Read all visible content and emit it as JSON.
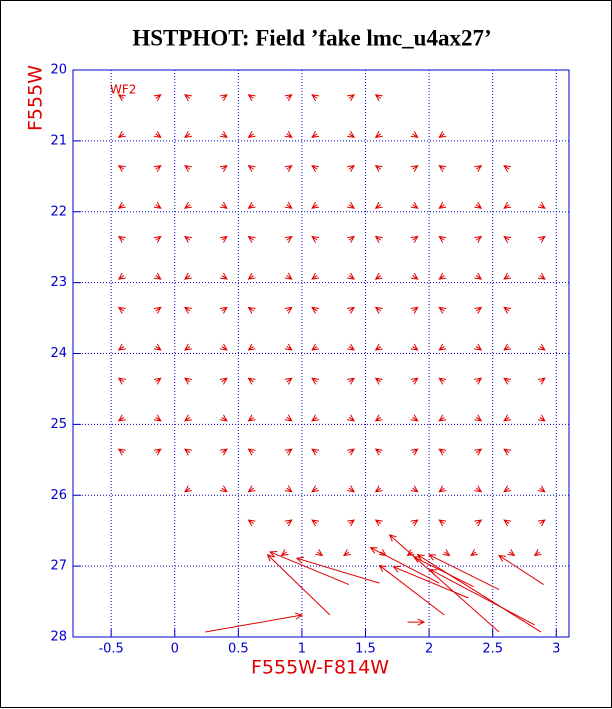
{
  "chart_data": {
    "type": "quiver",
    "title": "HSTPHOT: Field ’fake lmc_u4ax27’",
    "annotation": "WF2",
    "xlabel": "F555W-F814W",
    "ylabel": "F555W",
    "xlim": [
      -0.8,
      3.1
    ],
    "ylim": [
      28,
      20
    ],
    "xticks": [
      -0.5,
      0,
      0.5,
      1,
      1.5,
      2,
      2.5,
      3
    ],
    "yticks": [
      20,
      21,
      22,
      23,
      24,
      25,
      26,
      27,
      28
    ],
    "grid": true,
    "color": "#e00000",
    "x": [
      -0.4,
      -0.15,
      0.12,
      0.37,
      0.62,
      0.88,
      1.12,
      1.37,
      1.62,
      -0.4,
      -0.15,
      0.12,
      0.37,
      0.62,
      0.88,
      1.12,
      1.37,
      1.62,
      1.87,
      2.12,
      -0.4,
      -0.15,
      0.12,
      0.37,
      0.62,
      0.88,
      1.12,
      1.37,
      1.62,
      1.87,
      2.12,
      2.37,
      2.63,
      -0.4,
      -0.15,
      0.12,
      0.37,
      0.62,
      0.88,
      1.12,
      1.37,
      1.62,
      1.87,
      2.12,
      2.37,
      2.63,
      2.87,
      -0.4,
      -0.15,
      0.12,
      0.37,
      0.62,
      0.88,
      1.12,
      1.37,
      1.62,
      1.87,
      2.12,
      2.37,
      2.63,
      2.87,
      -0.4,
      -0.15,
      0.12,
      0.37,
      0.62,
      0.88,
      1.12,
      1.37,
      1.62,
      1.87,
      2.12,
      2.37,
      2.63,
      2.87,
      -0.4,
      -0.15,
      0.12,
      0.37,
      0.62,
      0.88,
      1.12,
      1.37,
      1.62,
      1.87,
      2.12,
      2.37,
      2.63,
      -0.4,
      -0.15,
      0.12,
      0.37,
      0.62,
      0.88,
      1.12,
      1.37,
      1.62,
      1.87,
      2.12,
      2.37,
      2.63,
      2.87,
      -0.4,
      -0.15,
      0.12,
      0.37,
      0.62,
      0.88,
      1.12,
      1.37,
      1.62,
      1.87,
      2.12,
      2.37,
      2.63,
      2.87,
      -0.4,
      -0.15,
      0.12,
      0.37,
      0.62,
      0.88,
      1.12,
      1.37,
      1.62,
      1.87,
      2.12,
      2.37,
      2.63,
      2.87,
      -0.4,
      -0.15,
      0.12,
      0.37,
      0.62,
      0.88,
      1.12,
      1.37,
      1.62,
      1.87,
      2.12,
      2.37,
      2.63,
      0.12,
      0.37,
      0.62,
      0.88,
      1.12,
      1.37,
      1.62,
      1.87,
      2.12,
      2.37,
      2.63,
      2.87,
      0.62,
      0.88,
      1.12,
      1.37,
      1.62,
      1.87,
      2.12,
      2.37,
      2.63,
      2.87,
      0.88,
      1.12,
      1.37,
      1.62,
      1.87,
      2.12,
      2.37,
      2.63,
      2.87,
      1.37,
      1.22,
      1.61,
      0.24,
      1.83,
      2.55,
      2.88,
      2.35,
      2.55,
      2.9,
      2.08,
      2.31,
      2.12,
      2.83
    ],
    "y": [
      20.4,
      20.4,
      20.4,
      20.4,
      20.4,
      20.4,
      20.4,
      20.4,
      20.4,
      20.9,
      20.9,
      20.9,
      20.9,
      20.9,
      20.9,
      20.9,
      20.9,
      20.9,
      20.9,
      20.9,
      21.4,
      21.4,
      21.4,
      21.4,
      21.4,
      21.4,
      21.4,
      21.4,
      21.4,
      21.4,
      21.4,
      21.4,
      21.4,
      21.9,
      21.9,
      21.9,
      21.9,
      21.9,
      21.9,
      21.9,
      21.9,
      21.9,
      21.9,
      21.9,
      21.9,
      21.9,
      21.9,
      22.4,
      22.4,
      22.4,
      22.4,
      22.4,
      22.4,
      22.4,
      22.4,
      22.4,
      22.4,
      22.4,
      22.4,
      22.4,
      22.4,
      22.9,
      22.9,
      22.9,
      22.9,
      22.9,
      22.9,
      22.9,
      22.9,
      22.9,
      22.9,
      22.9,
      22.9,
      22.9,
      22.9,
      23.4,
      23.4,
      23.4,
      23.4,
      23.4,
      23.4,
      23.4,
      23.4,
      23.4,
      23.4,
      23.4,
      23.4,
      23.4,
      23.9,
      23.9,
      23.9,
      23.9,
      23.9,
      23.9,
      23.9,
      23.9,
      23.9,
      23.9,
      23.9,
      23.9,
      23.9,
      23.9,
      24.4,
      24.4,
      24.4,
      24.4,
      24.4,
      24.4,
      24.4,
      24.4,
      24.4,
      24.4,
      24.4,
      24.4,
      24.4,
      24.4,
      24.9,
      24.9,
      24.9,
      24.9,
      24.9,
      24.9,
      24.9,
      24.9,
      24.9,
      24.9,
      24.9,
      24.9,
      24.9,
      24.9,
      25.4,
      25.4,
      25.4,
      25.4,
      25.4,
      25.4,
      25.4,
      25.4,
      25.4,
      25.4,
      25.4,
      25.4,
      25.4,
      25.9,
      25.9,
      25.9,
      25.9,
      25.9,
      25.9,
      25.9,
      25.9,
      25.9,
      25.9,
      25.9,
      25.9,
      26.4,
      26.4,
      26.4,
      26.4,
      26.4,
      26.4,
      26.4,
      26.4,
      26.4,
      26.4,
      26.8,
      26.8,
      26.8,
      26.8,
      26.8,
      26.8,
      26.8,
      26.8,
      26.8,
      27.26,
      27.69,
      27.24,
      27.93,
      27.79,
      27.93,
      27.93,
      27.29,
      27.33,
      27.26,
      27.24,
      27.45,
      27.69,
      27.83
    ],
    "dx": [
      -0.04,
      0.04,
      -0.04,
      0.04,
      -0.04,
      0.04,
      -0.04,
      0.04,
      -0.04,
      -0.04,
      0.04,
      -0.04,
      0.04,
      -0.04,
      0.04,
      -0.04,
      0.04,
      -0.04,
      0.04,
      -0.04,
      -0.04,
      0.04,
      -0.04,
      0.04,
      -0.04,
      0.04,
      -0.04,
      0.04,
      -0.04,
      0.04,
      -0.04,
      0.04,
      -0.04,
      -0.04,
      0.04,
      -0.04,
      0.04,
      -0.04,
      0.04,
      -0.04,
      0.04,
      -0.04,
      0.04,
      -0.04,
      0.04,
      -0.04,
      0.04,
      -0.04,
      0.04,
      -0.04,
      0.04,
      -0.04,
      0.04,
      -0.04,
      0.04,
      -0.04,
      0.04,
      -0.04,
      0.04,
      -0.04,
      0.04,
      -0.04,
      0.04,
      -0.04,
      0.04,
      -0.04,
      0.04,
      -0.04,
      0.04,
      -0.04,
      0.04,
      -0.04,
      0.04,
      -0.04,
      0.04,
      -0.04,
      0.04,
      -0.04,
      0.04,
      -0.04,
      0.04,
      -0.04,
      0.04,
      -0.04,
      0.04,
      -0.04,
      0.04,
      -0.04,
      -0.04,
      0.04,
      -0.04,
      0.04,
      -0.04,
      0.04,
      -0.04,
      0.04,
      -0.04,
      0.04,
      -0.04,
      0.04,
      -0.04,
      0.04,
      -0.04,
      0.04,
      -0.04,
      0.04,
      -0.04,
      0.04,
      -0.04,
      0.04,
      -0.04,
      0.04,
      -0.04,
      0.04,
      -0.04,
      0.04,
      -0.04,
      0.04,
      -0.04,
      0.04,
      -0.04,
      0.04,
      -0.04,
      0.04,
      -0.04,
      0.04,
      -0.04,
      0.04,
      -0.04,
      0.04,
      -0.04,
      0.04,
      -0.04,
      0.04,
      -0.04,
      0.04,
      -0.04,
      0.04,
      -0.04,
      0.04,
      -0.04,
      0.04,
      -0.04,
      -0.04,
      0.04,
      -0.04,
      0.04,
      -0.04,
      0.04,
      -0.04,
      0.04,
      -0.04,
      0.04,
      -0.04,
      0.04,
      -0.04,
      0.04,
      -0.04,
      0.04,
      -0.04,
      0.04,
      -0.04,
      0.04,
      -0.04,
      0.04,
      -0.04,
      0.04,
      -0.04,
      0.04,
      -0.04,
      0.04,
      -0.04,
      0.04,
      -0.04,
      -0.62,
      -0.49,
      -0.65,
      0.76,
      0.13,
      -0.86,
      -0.97,
      -0.47,
      -0.55,
      -0.35,
      -0.54,
      -0.59,
      -0.51,
      -0.82
    ],
    "dy": [
      -0.05,
      -0.05,
      -0.05,
      -0.05,
      -0.05,
      -0.05,
      -0.05,
      -0.05,
      -0.05,
      0.05,
      0.05,
      0.05,
      0.05,
      0.05,
      0.05,
      0.05,
      0.05,
      0.05,
      0.05,
      0.05,
      -0.05,
      -0.05,
      -0.05,
      -0.05,
      -0.05,
      -0.05,
      -0.05,
      -0.05,
      -0.05,
      -0.05,
      -0.05,
      -0.05,
      -0.05,
      0.05,
      0.05,
      0.05,
      0.05,
      0.05,
      0.05,
      0.05,
      0.05,
      0.05,
      0.05,
      0.05,
      0.05,
      0.05,
      0.05,
      -0.05,
      -0.05,
      -0.05,
      -0.05,
      -0.05,
      -0.05,
      -0.05,
      -0.05,
      -0.05,
      -0.05,
      -0.05,
      -0.05,
      -0.05,
      -0.05,
      0.05,
      0.05,
      0.05,
      0.05,
      0.05,
      0.05,
      0.05,
      0.05,
      0.05,
      0.05,
      0.05,
      0.05,
      0.05,
      0.05,
      -0.05,
      -0.05,
      -0.05,
      -0.05,
      -0.05,
      -0.05,
      -0.05,
      -0.05,
      -0.05,
      -0.05,
      -0.05,
      -0.05,
      -0.05,
      0.05,
      0.05,
      0.05,
      0.05,
      0.05,
      0.05,
      0.05,
      0.05,
      0.05,
      0.05,
      0.05,
      0.05,
      0.05,
      0.05,
      -0.05,
      -0.05,
      -0.05,
      -0.05,
      -0.05,
      -0.05,
      -0.05,
      -0.05,
      -0.05,
      -0.05,
      -0.05,
      -0.05,
      -0.05,
      -0.05,
      0.05,
      0.05,
      0.05,
      0.05,
      0.05,
      0.05,
      0.05,
      0.05,
      0.05,
      0.05,
      0.05,
      0.05,
      0.05,
      0.05,
      -0.05,
      -0.05,
      -0.05,
      -0.05,
      -0.05,
      -0.05,
      -0.05,
      -0.05,
      -0.05,
      -0.05,
      -0.05,
      -0.05,
      -0.05,
      0.05,
      0.05,
      0.05,
      0.05,
      0.05,
      0.05,
      0.05,
      0.05,
      0.05,
      0.05,
      0.05,
      0.05,
      -0.05,
      -0.05,
      -0.05,
      -0.05,
      -0.05,
      -0.05,
      -0.05,
      -0.05,
      -0.05,
      -0.05,
      0.05,
      0.05,
      0.05,
      0.05,
      0.05,
      0.05,
      0.05,
      0.05,
      0.05,
      -0.46,
      -0.85,
      -0.35,
      -0.24,
      0,
      -1.37,
      -1.09,
      -0.42,
      -0.49,
      -0.41,
      -0.5,
      -0.44,
      -0.7,
      -0.78
    ]
  }
}
